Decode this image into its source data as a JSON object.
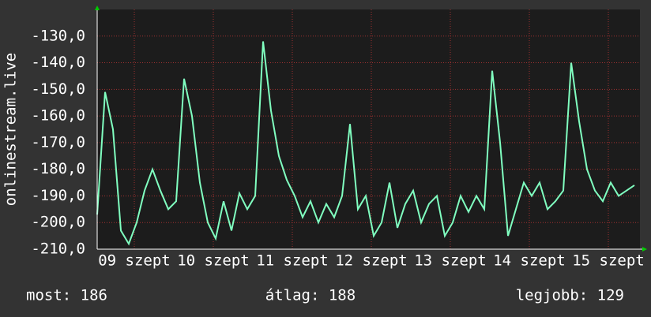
{
  "chart_data": {
    "type": "line",
    "ylabel": "onlinestream.live",
    "x": [
      0.0,
      0.1,
      0.2,
      0.3,
      0.4,
      0.5,
      0.6,
      0.7,
      0.8,
      0.9,
      1.0,
      1.1,
      1.2,
      1.3,
      1.4,
      1.5,
      1.6,
      1.7,
      1.8,
      1.9,
      2.0,
      2.1,
      2.2,
      2.3,
      2.4,
      2.5,
      2.6,
      2.7,
      2.8,
      2.9,
      3.0,
      3.1,
      3.2,
      3.3,
      3.4,
      3.5,
      3.6,
      3.7,
      3.8,
      3.9,
      4.0,
      4.1,
      4.2,
      4.3,
      4.4,
      4.5,
      4.6,
      4.7,
      4.8,
      4.9,
      5.0,
      5.1,
      5.2,
      5.3,
      5.4,
      5.5,
      5.6,
      5.7,
      5.8,
      5.9,
      6.0,
      6.1,
      6.2,
      6.3,
      6.4,
      6.5,
      6.6,
      6.7,
      6.8
    ],
    "values": [
      -197,
      -151,
      -165,
      -203,
      -208,
      -200,
      -188,
      -180,
      -188,
      -195,
      -192,
      -146,
      -160,
      -185,
      -200,
      -206,
      -192,
      -203,
      -189,
      -195,
      -190,
      -132,
      -158,
      -175,
      -184,
      -190,
      -198,
      -192,
      -200,
      -193,
      -198,
      -190,
      -163,
      -195,
      -190,
      -205,
      -200,
      -185,
      -202,
      -193,
      -188,
      -200,
      -193,
      -190,
      -205,
      -200,
      -190,
      -196,
      -190,
      -195,
      -143,
      -170,
      -205,
      -195,
      -185,
      -190,
      -185,
      -195,
      -192,
      -188,
      -140,
      -162,
      -180,
      -188,
      -192,
      -185,
      -190,
      -188,
      -186
    ],
    "color": "#80ffc0",
    "xlim": [
      0,
      6.87
    ],
    "xticks": [
      {
        "value": 0.47,
        "label": "09 szept"
      },
      {
        "value": 1.47,
        "label": "10 szept"
      },
      {
        "value": 2.47,
        "label": "11 szept"
      },
      {
        "value": 3.47,
        "label": "12 szept"
      },
      {
        "value": 4.47,
        "label": "13 szept"
      },
      {
        "value": 5.47,
        "label": "14 szept"
      },
      {
        "value": 6.47,
        "label": "15 szept"
      }
    ],
    "ylim": [
      -210,
      -120
    ],
    "yticks": [
      {
        "value": -210,
        "label": "-210,0"
      },
      {
        "value": -200,
        "label": "-200,0"
      },
      {
        "value": -190,
        "label": "-190,0"
      },
      {
        "value": -180,
        "label": "-180,0"
      },
      {
        "value": -170,
        "label": "-170,0"
      },
      {
        "value": -160,
        "label": "-160,0"
      },
      {
        "value": -150,
        "label": "-150,0"
      },
      {
        "value": -140,
        "label": "-140,0"
      },
      {
        "value": -130,
        "label": "-130,0"
      }
    ],
    "grid": true,
    "footer": [
      "most: 186",
      "átlag: 188",
      "legjobb: 129"
    ]
  }
}
